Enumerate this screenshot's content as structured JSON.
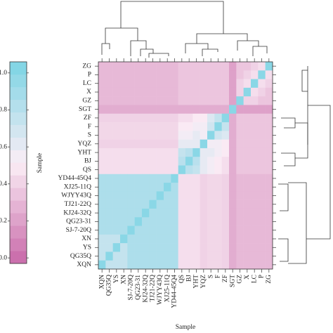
{
  "chart_data": {
    "type": "heatmap",
    "x_label": "Sample",
    "colorbar_label": "Sample",
    "x_categories": [
      "XQN",
      "QG35Q",
      "YS",
      "XN",
      "SJ-7-20Q",
      "QG23-31",
      "KJ24-32Q",
      "TJ21-22Q",
      "WJYY43Q",
      "XJ25-11Q",
      "YD44-45Q4",
      "QS",
      "BJ",
      "YHT",
      "YQZ",
      "S",
      "F",
      "ZF",
      "SGT",
      "GZ",
      "X",
      "LC",
      "P",
      "ZG"
    ],
    "y_categories": [
      "ZG",
      "P",
      "LC",
      "X",
      "GZ",
      "SGT",
      "ZF",
      "F",
      "S",
      "YQZ",
      "YHT",
      "BJ",
      "QS",
      "YD44-45Q4",
      "XJ25-11Q",
      "WJYY43Q",
      "TJ21-22Q",
      "KJ24-32Q",
      "QG23-31",
      "SJ-7-20Q",
      "XN",
      "YS",
      "QG35Q",
      "XQN"
    ],
    "values": [
      [
        0.3,
        0.3,
        0.3,
        0.3,
        0.3,
        0.3,
        0.3,
        0.3,
        0.3,
        0.3,
        0.3,
        0.35,
        0.35,
        0.35,
        0.35,
        0.35,
        0.35,
        0.35,
        0.2,
        0.35,
        0.35,
        0.4,
        0.45,
        1
      ],
      [
        0.3,
        0.3,
        0.3,
        0.3,
        0.3,
        0.3,
        0.3,
        0.3,
        0.3,
        0.3,
        0.3,
        0.35,
        0.35,
        0.35,
        0.35,
        0.35,
        0.35,
        0.35,
        0.2,
        0.35,
        0.4,
        0.45,
        1,
        0.45
      ],
      [
        0.3,
        0.3,
        0.3,
        0.3,
        0.3,
        0.3,
        0.3,
        0.3,
        0.3,
        0.3,
        0.3,
        0.35,
        0.35,
        0.35,
        0.35,
        0.35,
        0.35,
        0.35,
        0.2,
        0.4,
        0.45,
        1,
        0.45,
        0.4
      ],
      [
        0.3,
        0.3,
        0.3,
        0.3,
        0.3,
        0.3,
        0.3,
        0.3,
        0.3,
        0.3,
        0.3,
        0.35,
        0.35,
        0.35,
        0.35,
        0.35,
        0.35,
        0.35,
        0.2,
        0.4,
        1,
        0.45,
        0.4,
        0.35
      ],
      [
        0.3,
        0.3,
        0.3,
        0.3,
        0.3,
        0.3,
        0.3,
        0.3,
        0.3,
        0.3,
        0.3,
        0.35,
        0.35,
        0.35,
        0.35,
        0.35,
        0.35,
        0.35,
        0.2,
        1,
        0.4,
        0.4,
        0.35,
        0.35
      ],
      [
        0.25,
        0.25,
        0.25,
        0.25,
        0.25,
        0.25,
        0.25,
        0.25,
        0.25,
        0.25,
        0.25,
        0.25,
        0.25,
        0.25,
        0.25,
        0.25,
        0.25,
        0.25,
        1,
        0.2,
        0.2,
        0.2,
        0.2,
        0.2
      ],
      [
        0.4,
        0.4,
        0.4,
        0.4,
        0.4,
        0.4,
        0.4,
        0.4,
        0.4,
        0.4,
        0.4,
        0.45,
        0.45,
        0.5,
        0.5,
        0.65,
        0.75,
        1,
        0.25,
        0.35,
        0.35,
        0.35,
        0.35,
        0.35
      ],
      [
        0.42,
        0.42,
        0.42,
        0.42,
        0.42,
        0.42,
        0.42,
        0.42,
        0.42,
        0.42,
        0.42,
        0.5,
        0.5,
        0.55,
        0.55,
        0.7,
        1,
        0.75,
        0.25,
        0.35,
        0.35,
        0.35,
        0.35,
        0.35
      ],
      [
        0.42,
        0.42,
        0.42,
        0.42,
        0.42,
        0.42,
        0.42,
        0.42,
        0.42,
        0.42,
        0.42,
        0.55,
        0.55,
        0.6,
        0.55,
        1,
        0.7,
        0.65,
        0.25,
        0.35,
        0.35,
        0.35,
        0.35,
        0.35
      ],
      [
        0.4,
        0.4,
        0.4,
        0.4,
        0.4,
        0.4,
        0.4,
        0.4,
        0.4,
        0.4,
        0.4,
        0.6,
        0.6,
        0.6,
        1,
        0.55,
        0.55,
        0.5,
        0.25,
        0.35,
        0.35,
        0.35,
        0.35,
        0.35
      ],
      [
        0.45,
        0.45,
        0.45,
        0.45,
        0.45,
        0.45,
        0.45,
        0.45,
        0.45,
        0.45,
        0.45,
        0.75,
        0.8,
        1,
        0.6,
        0.6,
        0.55,
        0.5,
        0.25,
        0.35,
        0.35,
        0.35,
        0.35,
        0.35
      ],
      [
        0.45,
        0.45,
        0.45,
        0.45,
        0.45,
        0.45,
        0.45,
        0.45,
        0.45,
        0.45,
        0.45,
        0.8,
        1,
        0.8,
        0.6,
        0.55,
        0.5,
        0.45,
        0.25,
        0.35,
        0.35,
        0.35,
        0.35,
        0.35
      ],
      [
        0.45,
        0.45,
        0.45,
        0.45,
        0.45,
        0.45,
        0.45,
        0.45,
        0.45,
        0.45,
        0.45,
        1,
        0.8,
        0.75,
        0.6,
        0.55,
        0.5,
        0.45,
        0.25,
        0.35,
        0.35,
        0.35,
        0.35,
        0.35
      ],
      [
        0.85,
        0.85,
        0.85,
        0.85,
        0.85,
        0.85,
        0.85,
        0.85,
        0.85,
        0.85,
        1,
        0.45,
        0.45,
        0.45,
        0.4,
        0.42,
        0.42,
        0.4,
        0.25,
        0.3,
        0.3,
        0.3,
        0.3,
        0.3
      ],
      [
        0.85,
        0.85,
        0.85,
        0.85,
        0.85,
        0.85,
        0.85,
        0.85,
        0.85,
        1,
        0.85,
        0.45,
        0.45,
        0.45,
        0.4,
        0.42,
        0.42,
        0.4,
        0.25,
        0.3,
        0.3,
        0.3,
        0.3,
        0.3
      ],
      [
        0.85,
        0.85,
        0.85,
        0.85,
        0.85,
        0.85,
        0.85,
        0.85,
        1,
        0.85,
        0.85,
        0.45,
        0.45,
        0.45,
        0.4,
        0.42,
        0.42,
        0.4,
        0.25,
        0.3,
        0.3,
        0.3,
        0.3,
        0.3
      ],
      [
        0.85,
        0.85,
        0.85,
        0.85,
        0.85,
        0.85,
        0.85,
        1,
        0.85,
        0.85,
        0.85,
        0.45,
        0.45,
        0.45,
        0.4,
        0.42,
        0.42,
        0.4,
        0.25,
        0.3,
        0.3,
        0.3,
        0.3,
        0.3
      ],
      [
        0.85,
        0.85,
        0.85,
        0.85,
        0.85,
        0.85,
        1,
        0.85,
        0.85,
        0.85,
        0.85,
        0.45,
        0.45,
        0.45,
        0.4,
        0.42,
        0.42,
        0.4,
        0.25,
        0.3,
        0.3,
        0.3,
        0.3,
        0.3
      ],
      [
        0.85,
        0.85,
        0.85,
        0.85,
        0.85,
        1,
        0.85,
        0.85,
        0.85,
        0.85,
        0.85,
        0.45,
        0.45,
        0.45,
        0.4,
        0.42,
        0.42,
        0.4,
        0.25,
        0.3,
        0.3,
        0.3,
        0.3,
        0.3
      ],
      [
        0.85,
        0.85,
        0.85,
        0.85,
        1,
        0.85,
        0.85,
        0.85,
        0.85,
        0.85,
        0.85,
        0.45,
        0.45,
        0.45,
        0.4,
        0.42,
        0.42,
        0.4,
        0.25,
        0.3,
        0.3,
        0.3,
        0.3,
        0.3
      ],
      [
        0.75,
        0.75,
        0.75,
        1,
        0.85,
        0.85,
        0.85,
        0.85,
        0.85,
        0.85,
        0.85,
        0.45,
        0.45,
        0.45,
        0.4,
        0.42,
        0.42,
        0.4,
        0.25,
        0.3,
        0.3,
        0.3,
        0.3,
        0.3
      ],
      [
        0.75,
        0.75,
        1,
        0.75,
        0.85,
        0.85,
        0.85,
        0.85,
        0.85,
        0.85,
        0.85,
        0.45,
        0.45,
        0.45,
        0.4,
        0.42,
        0.42,
        0.4,
        0.25,
        0.3,
        0.3,
        0.3,
        0.3,
        0.3
      ],
      [
        0.75,
        1,
        0.75,
        0.75,
        0.85,
        0.85,
        0.85,
        0.85,
        0.85,
        0.85,
        0.85,
        0.45,
        0.45,
        0.45,
        0.4,
        0.42,
        0.42,
        0.4,
        0.25,
        0.3,
        0.3,
        0.3,
        0.3,
        0.3
      ],
      [
        1,
        0.75,
        0.75,
        0.75,
        0.85,
        0.85,
        0.85,
        0.85,
        0.85,
        0.85,
        0.85,
        0.45,
        0.45,
        0.45,
        0.4,
        0.42,
        0.42,
        0.4,
        0.25,
        0.3,
        0.3,
        0.3,
        0.3,
        0.3
      ]
    ],
    "colors": [
      "#c868a8",
      "#fbeef6",
      "#7cd4e4"
    ],
    "clim": [
      -0.03,
      1.06
    ],
    "cticks": [
      {
        "value": 0,
        "label": "0.0"
      },
      0.2,
      0.4,
      0.6,
      0.8,
      {
        "value": 1,
        "label": "1.0"
      }
    ]
  }
}
